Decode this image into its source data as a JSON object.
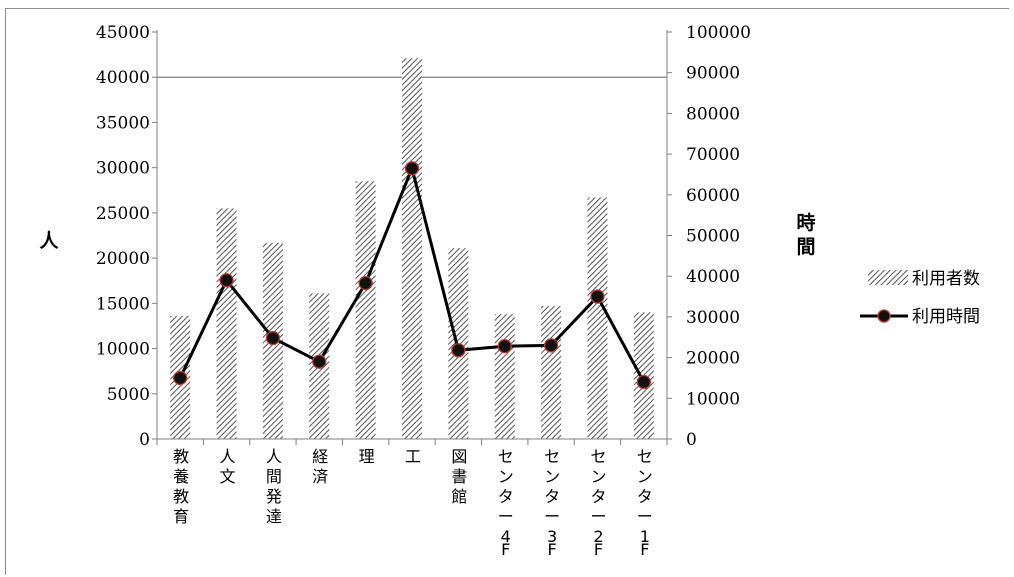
{
  "chart_data": {
    "type": "bar",
    "categories": [
      "教養教育",
      "人文",
      "人間発達",
      "経済",
      "理",
      "工",
      "図書館",
      "センター4F",
      "センター3F",
      "センター2F",
      "センター1F"
    ],
    "series": [
      {
        "name": "利用者数",
        "type": "bar",
        "axis": "left",
        "values": [
          13600,
          25500,
          21700,
          16100,
          28500,
          42100,
          21100,
          13800,
          14700,
          26700,
          14000
        ]
      },
      {
        "name": "利用時間",
        "type": "line",
        "axis": "right",
        "values": [
          15000,
          39000,
          24800,
          19000,
          38300,
          66500,
          21800,
          22800,
          23000,
          35000,
          14000
        ]
      }
    ],
    "ylabel": "人",
    "y2label": "時間",
    "ylim": [
      0,
      45000
    ],
    "y2lim": [
      0,
      100000
    ],
    "yticks": [
      "0",
      "5000",
      "10000",
      "15000",
      "20000",
      "25000",
      "30000",
      "35000",
      "40000",
      "45000"
    ],
    "y2ticks": [
      "0",
      "10000",
      "20000",
      "30000",
      "40000",
      "50000",
      "60000",
      "70000",
      "80000",
      "90000",
      "100000"
    ],
    "gridline_at": 40000,
    "legend_position": "right",
    "colors": {
      "bar_hatch": "#555555",
      "line": "#000000",
      "marker_edge": "#c0392b",
      "grid": "#808080"
    }
  }
}
